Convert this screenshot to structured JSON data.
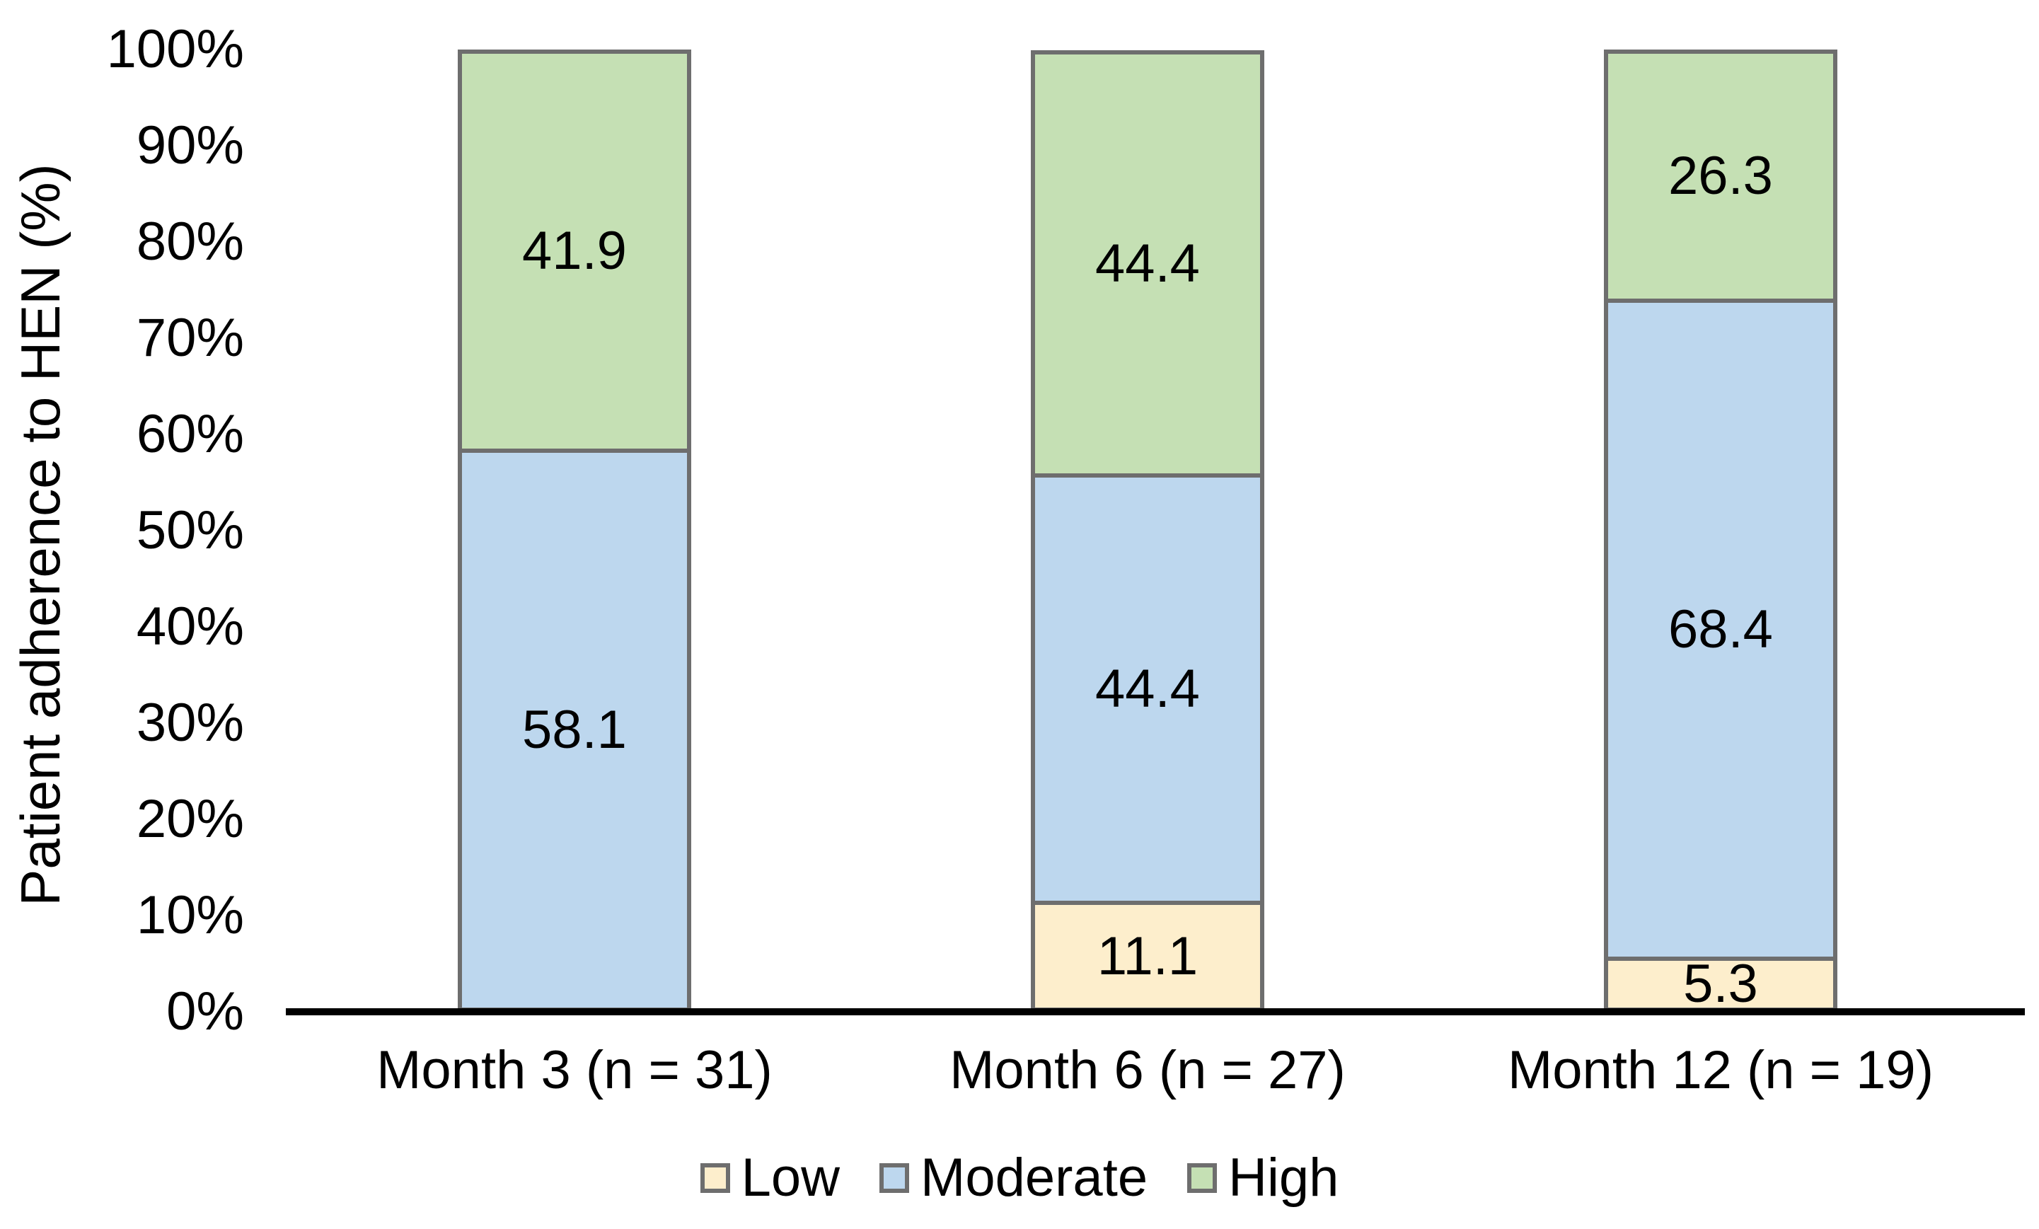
{
  "figure": {
    "background": "#FFFFFF",
    "text_color": "#000000"
  },
  "chart_data": {
    "type": "bar",
    "stacked": true,
    "orientation": "vertical",
    "title": "",
    "xlabel": "",
    "ylabel": "Patient adherence to HEN (%)",
    "categories": [
      "Month 3 (n = 31)",
      "Month 6 (n = 27)",
      "Month 12 (n = 19)"
    ],
    "series": [
      {
        "name": "Low",
        "color": "#FDEECC",
        "values": [
          0,
          11.1,
          5.3
        ],
        "labels": [
          "",
          "11.1",
          "5.3"
        ]
      },
      {
        "name": "Moderate",
        "color": "#BDD7EE",
        "values": [
          58.1,
          44.4,
          68.4
        ],
        "labels": [
          "58.1",
          "44.4",
          "68.4"
        ]
      },
      {
        "name": "High",
        "color": "#C5E0B4",
        "values": [
          41.9,
          44.4,
          26.3
        ],
        "labels": [
          "41.9",
          "44.4",
          "26.3"
        ]
      }
    ],
    "y_ticks": [
      "0%",
      "10%",
      "20%",
      "30%",
      "40%",
      "50%",
      "60%",
      "70%",
      "80%",
      "90%",
      "100%"
    ],
    "ylim": [
      0,
      100
    ],
    "grid": false,
    "legend_position": "bottom",
    "bar_border_color": "#6E6E6E",
    "axis_line_color": "#000000"
  }
}
